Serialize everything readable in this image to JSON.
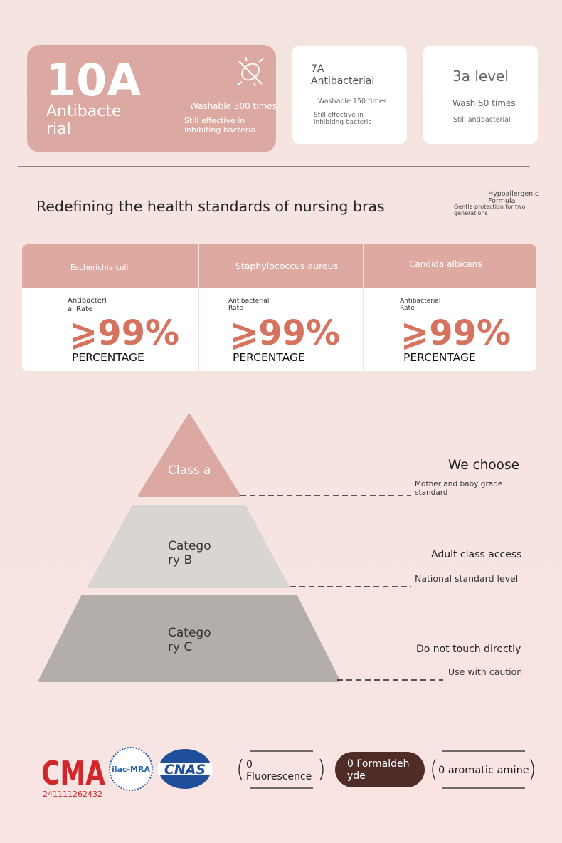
{
  "grades": [
    {
      "level": "10A",
      "name_lines": [
        "Antibacte",
        "rial"
      ],
      "wash": "Washable 300 times",
      "effect_lines": [
        "Still effective in",
        "inhibiting bacteria"
      ]
    },
    {
      "level": "7A",
      "name_lines": [
        "Antibacterial"
      ],
      "wash": "Washable 150 times",
      "effect_lines": [
        "Still effective in",
        "inhibiting bacteria"
      ]
    },
    {
      "title": "3a level",
      "wash": "Wash 50 times",
      "effect_lines": [
        "Still antibacterial"
      ]
    }
  ],
  "headline": "Redefining the health standards of nursing bras",
  "side_note": {
    "title_lines": [
      "Hypoallergenic",
      "Formula"
    ],
    "text_lines": [
      "Gentle protection for two",
      "generations"
    ]
  },
  "bacteria": [
    {
      "name": "Escherichia coli",
      "label_lines": [
        "Antibacteri",
        "al Rate"
      ],
      "value": "⩾99%",
      "unit": "PERCENTAGE"
    },
    {
      "name": "Staphylococcus aureus",
      "label_lines": [
        "Antibacterial",
        "Rate"
      ],
      "value": "⩾99%",
      "unit": "PERCENTAGE"
    },
    {
      "name": "Candida albicans",
      "label_lines": [
        "Antibacterial",
        "Rate"
      ],
      "value": "⩾99%",
      "unit": "PERCENTAGE"
    }
  ],
  "pyramid": [
    {
      "label_lines": [
        "Class a"
      ],
      "title": "We choose",
      "note_lines": [
        "Mother and baby grade",
        "standard"
      ]
    },
    {
      "label_lines": [
        "Catego",
        "ry B"
      ],
      "title": "Adult class access",
      "note_lines": [
        "National standard level"
      ]
    },
    {
      "label_lines": [
        "Catego",
        "ry C"
      ],
      "title": "Do not touch directly",
      "note_lines": [
        "Use with caution"
      ]
    }
  ],
  "logos": {
    "cma": "CMA",
    "cma_number": "241111262432",
    "ilac": "ilac-MRA",
    "cnas": "CNAS"
  },
  "badges": [
    {
      "lines": [
        "0",
        "Fluorescence"
      ]
    },
    {
      "lines": [
        "0 Formaldeh",
        "yde"
      ]
    },
    {
      "lines": [
        "0 aromatic amine"
      ]
    }
  ]
}
